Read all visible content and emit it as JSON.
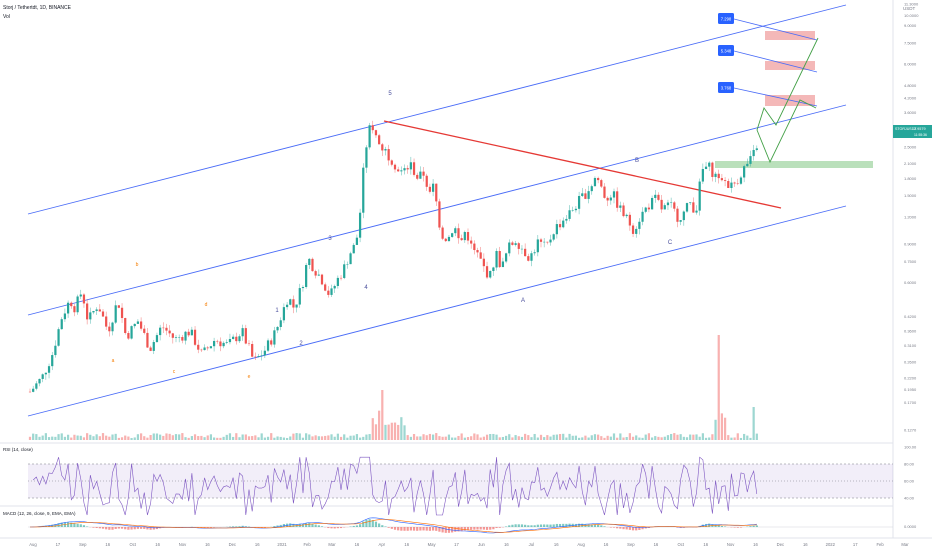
{
  "header": {
    "symbol_title": "Storj / Tethertdt, 1D, BINANCE",
    "indicator_label": "Vol"
  },
  "badges": {
    "price_tag": "STORJUSDT",
    "price_value": "2.9579",
    "price_sub": "11:55:36"
  },
  "y_axis": {
    "unit": "USDT",
    "ticks": [
      11.3,
      10.0,
      9.0,
      7.5,
      6.0,
      4.8,
      4.2,
      3.6,
      3.0,
      2.5,
      2.1,
      1.8,
      1.5,
      1.2,
      0.9,
      0.75,
      0.6,
      0.42,
      0.36,
      0.31,
      0.26,
      0.22,
      0.195,
      0.17,
      0.127
    ]
  },
  "x_axis": {
    "ticks": [
      "Aug",
      "17",
      "Sep",
      "16",
      "Oct",
      "16",
      "Nov",
      "16",
      "Dec",
      "16",
      "2021",
      "Feb",
      "Mar",
      "16",
      "Apr",
      "16",
      "May",
      "17",
      "Jun",
      "16",
      "Jul",
      "16",
      "Aug",
      "16",
      "Sep",
      "16",
      "Oct",
      "16",
      "Nov",
      "16",
      "Dec",
      "16",
      "2022",
      "17",
      "Feb",
      "Mar"
    ]
  },
  "annotations": {
    "targets": [
      "3.768",
      "5.348",
      "7.298"
    ],
    "wave_labels": [
      "5",
      "3",
      "4",
      "1",
      "2",
      "A",
      "B",
      "C",
      "a",
      "b",
      "c",
      "d",
      "e"
    ]
  },
  "rsi": {
    "label": "RSI (14, close)",
    "ticks": [
      "100.00",
      "80.00",
      "60.00",
      "40.00"
    ]
  },
  "macd": {
    "label": "MACD (12, 26, close, 9, EMA, EMA)",
    "ticks": [
      "0.0000"
    ]
  },
  "chart_data": {
    "type": "candlestick",
    "title": "Storj / Tethertdt, 1D, BINANCE",
    "y_scale": "log",
    "ylim": [
      0.127,
      11.3
    ],
    "grid": false,
    "series": [
      {
        "name": "STORJUSDT",
        "x": [
          "Aug",
          "Sep",
          "Oct",
          "Nov",
          "Dec",
          "2021",
          "Feb",
          "Mar",
          "Apr",
          "May",
          "Jun",
          "Jul",
          "Aug",
          "Sep",
          "Oct",
          "Nov",
          "Dec"
        ],
        "values": [
          0.19,
          0.55,
          0.42,
          0.3,
          0.27,
          0.34,
          0.75,
          3.0,
          2.0,
          1.1,
          0.65,
          0.95,
          1.6,
          1.8,
          1.2,
          2.1,
          2.96
        ]
      }
    ],
    "last_price": 2.9579,
    "targets": [
      3.768,
      5.348,
      7.298
    ]
  }
}
